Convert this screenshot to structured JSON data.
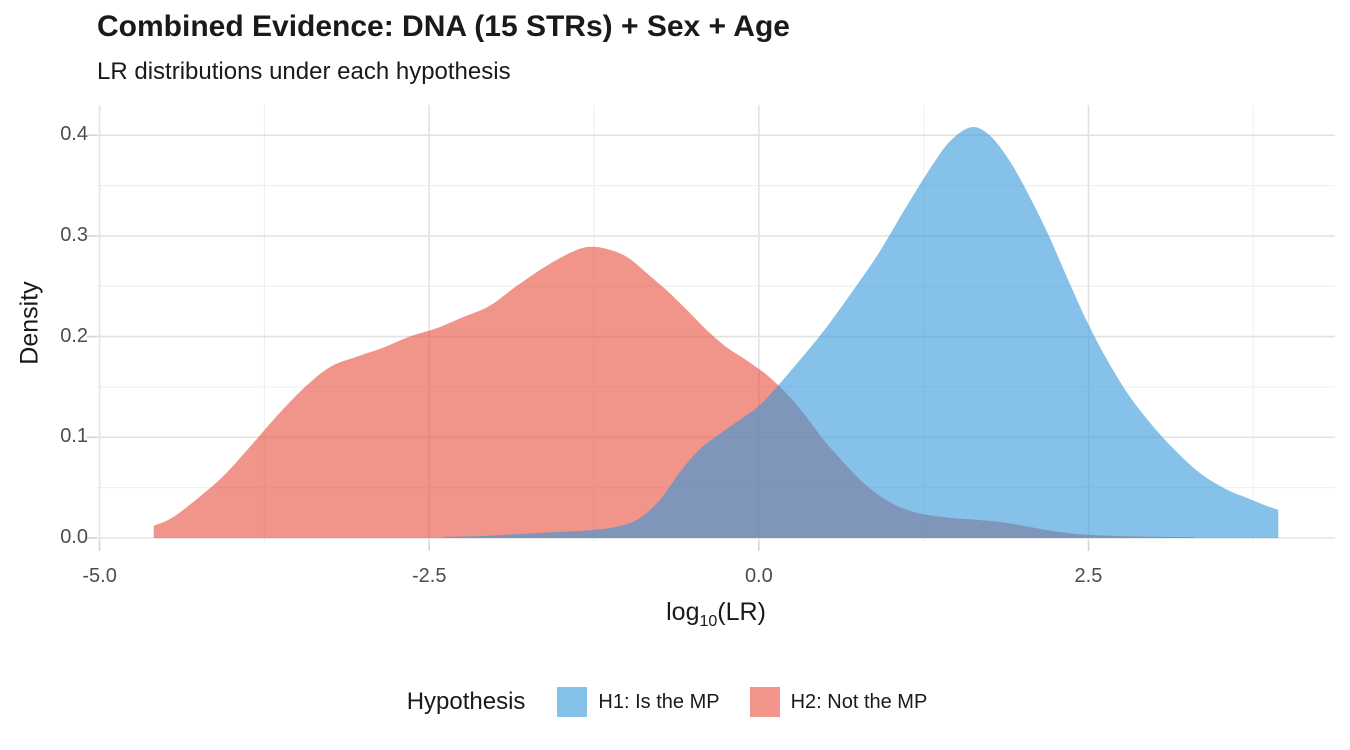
{
  "chart_data": {
    "type": "area",
    "title": "Combined Evidence: DNA (15 STRs) + Sex + Age",
    "subtitle": "LR distributions under each hypothesis",
    "ylabel": "Density",
    "xlabel": {
      "pre": "log",
      "sub": "10",
      "post": "(LR)"
    },
    "x_domain": [
      -5.02,
      4.37
    ],
    "y_domain": [
      -0.004,
      0.43
    ],
    "x_ticks": [
      {
        "v": -5.0,
        "label": "-5.0"
      },
      {
        "v": -2.5,
        "label": "-2.5"
      },
      {
        "v": 0.0,
        "label": "0.0"
      },
      {
        "v": 2.5,
        "label": "2.5"
      }
    ],
    "y_ticks": [
      {
        "v": 0.0,
        "label": "0.0"
      },
      {
        "v": 0.1,
        "label": "0.1"
      },
      {
        "v": 0.2,
        "label": "0.2"
      },
      {
        "v": 0.3,
        "label": "0.3"
      },
      {
        "v": 0.4,
        "label": "0.4"
      }
    ],
    "x_minor": [
      -3.75,
      -1.25,
      1.25,
      3.75
    ],
    "y_minor": [
      0.05,
      0.15,
      0.25,
      0.35
    ],
    "grid": "on",
    "series": [
      {
        "id": "h2",
        "name": "H2: Not the MP",
        "color": "#E74C3C",
        "opacity": 0.6,
        "points": [
          [
            -4.59,
            0.012
          ],
          [
            -4.45,
            0.02
          ],
          [
            -4.25,
            0.04
          ],
          [
            -4.05,
            0.063
          ],
          [
            -3.85,
            0.092
          ],
          [
            -3.65,
            0.122
          ],
          [
            -3.45,
            0.149
          ],
          [
            -3.25,
            0.17
          ],
          [
            -3.05,
            0.18
          ],
          [
            -2.85,
            0.189
          ],
          [
            -2.65,
            0.2
          ],
          [
            -2.45,
            0.208
          ],
          [
            -2.25,
            0.219
          ],
          [
            -2.05,
            0.23
          ],
          [
            -1.85,
            0.249
          ],
          [
            -1.65,
            0.267
          ],
          [
            -1.45,
            0.282
          ],
          [
            -1.3,
            0.289
          ],
          [
            -1.15,
            0.287
          ],
          [
            -1.0,
            0.279
          ],
          [
            -0.85,
            0.263
          ],
          [
            -0.7,
            0.246
          ],
          [
            -0.55,
            0.227
          ],
          [
            -0.4,
            0.207
          ],
          [
            -0.25,
            0.19
          ],
          [
            -0.1,
            0.177
          ],
          [
            0.05,
            0.163
          ],
          [
            0.2,
            0.145
          ],
          [
            0.35,
            0.122
          ],
          [
            0.5,
            0.096
          ],
          [
            0.65,
            0.074
          ],
          [
            0.8,
            0.054
          ],
          [
            0.95,
            0.039
          ],
          [
            1.1,
            0.029
          ],
          [
            1.25,
            0.0235
          ],
          [
            1.45,
            0.02
          ],
          [
            1.65,
            0.018
          ],
          [
            1.85,
            0.0155
          ],
          [
            2.05,
            0.011
          ],
          [
            2.25,
            0.0065
          ],
          [
            2.45,
            0.0035
          ],
          [
            2.7,
            0.002
          ],
          [
            3.0,
            0.0012
          ],
          [
            3.3,
            0.0008
          ]
        ]
      },
      {
        "id": "h1",
        "name": "H1: Is the MP",
        "color": "#3498DB",
        "opacity": 0.6,
        "points": [
          [
            -2.4,
            0.001
          ],
          [
            -2.1,
            0.002
          ],
          [
            -1.8,
            0.004
          ],
          [
            -1.5,
            0.006
          ],
          [
            -1.25,
            0.008
          ],
          [
            -1.05,
            0.012
          ],
          [
            -0.9,
            0.02
          ],
          [
            -0.75,
            0.038
          ],
          [
            -0.6,
            0.065
          ],
          [
            -0.45,
            0.088
          ],
          [
            -0.3,
            0.103
          ],
          [
            -0.15,
            0.117
          ],
          [
            0.0,
            0.131
          ],
          [
            0.15,
            0.152
          ],
          [
            0.3,
            0.175
          ],
          [
            0.5,
            0.207
          ],
          [
            0.7,
            0.243
          ],
          [
            0.9,
            0.281
          ],
          [
            1.1,
            0.325
          ],
          [
            1.3,
            0.367
          ],
          [
            1.45,
            0.394
          ],
          [
            1.61,
            0.408
          ],
          [
            1.75,
            0.4
          ],
          [
            1.9,
            0.375
          ],
          [
            2.05,
            0.34
          ],
          [
            2.2,
            0.3
          ],
          [
            2.35,
            0.255
          ],
          [
            2.5,
            0.212
          ],
          [
            2.65,
            0.175
          ],
          [
            2.8,
            0.143
          ],
          [
            2.97,
            0.114
          ],
          [
            3.15,
            0.088
          ],
          [
            3.35,
            0.064
          ],
          [
            3.55,
            0.048
          ],
          [
            3.7,
            0.04
          ],
          [
            3.85,
            0.032
          ],
          [
            3.94,
            0.028
          ]
        ]
      }
    ],
    "legend": {
      "title": "Hypothesis",
      "position": "bottom",
      "entries": [
        {
          "label": "H1: Is the MP",
          "color": "#3498DB",
          "opacity": 0.6
        },
        {
          "label": "H2: Not the MP",
          "color": "#E74C3C",
          "opacity": 0.6
        }
      ]
    }
  }
}
